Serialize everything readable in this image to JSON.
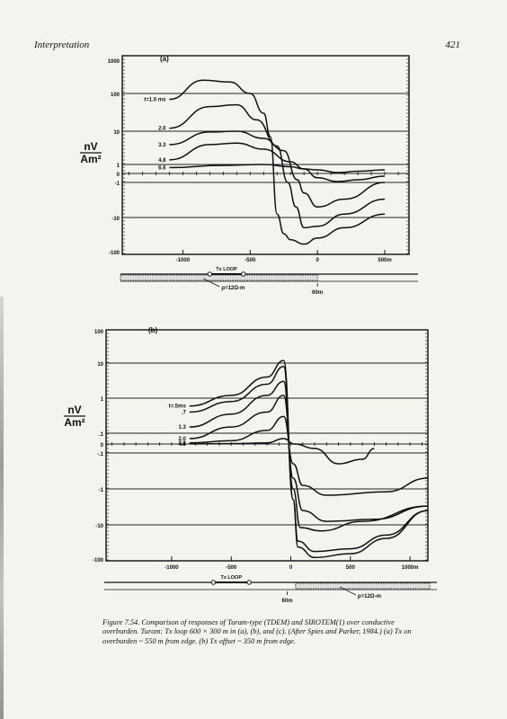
{
  "header": {
    "running_head": "Interpretation",
    "page_number": "421"
  },
  "chart_data": [
    {
      "type": "line",
      "panel_label": "(a)",
      "ylabel": [
        "nV",
        "Am²"
      ],
      "xlim": [
        -1450,
        680
      ],
      "y_ticks": [
        "1000",
        "100",
        "10",
        "1",
        "0",
        "-1",
        "-10",
        "-100"
      ],
      "x_ticks": [
        "-1000",
        "-500",
        "0",
        "500m"
      ],
      "x_tick_values": [
        -1000,
        -500,
        0,
        500
      ],
      "series": [
        {
          "name": "t=1.0 ms",
          "x": [
            -1100,
            -850,
            -650,
            -500,
            -400,
            -350,
            -300,
            -250,
            -200,
            -100,
            0,
            200,
            500
          ],
          "y": [
            70,
            250,
            220,
            100,
            30,
            5,
            -8,
            -30,
            -45,
            -60,
            -40,
            -20,
            -8
          ]
        },
        {
          "name": "2.0",
          "x": [
            -1100,
            -800,
            -600,
            -450,
            -300,
            -220,
            -160,
            -100,
            0,
            200,
            500
          ],
          "y": [
            12,
            45,
            50,
            20,
            1.5,
            -1,
            -5,
            -20,
            -18,
            -8,
            -3
          ]
        },
        {
          "name": "3.3",
          "x": [
            -1100,
            -800,
            -600,
            -400,
            -250,
            -150,
            -100,
            0,
            200,
            500
          ],
          "y": [
            1.8,
            9,
            10,
            4,
            0.8,
            -0.5,
            -2,
            -5,
            -3,
            -1
          ]
        },
        {
          "name": "4.8",
          "x": [
            -1100,
            -800,
            -600,
            -400,
            -200,
            -100,
            0,
            150,
            300,
            500
          ],
          "y": [
            0.2,
            1.8,
            2.2,
            1,
            0.15,
            0,
            -0.3,
            -0.8,
            -0.5,
            -0.2
          ]
        },
        {
          "name": "6.6",
          "x": [
            -1100,
            -700,
            -400,
            -200,
            -100,
            0,
            150,
            300,
            500
          ],
          "y": [
            0.03,
            0.08,
            0.1,
            0.05,
            0,
            -0.02,
            -0.08,
            -0.05,
            -0.02
          ]
        }
      ],
      "section": {
        "loop_label": "Tx LOOP",
        "resistivity": "ρ=12Ω-m",
        "edge_label": "60m"
      }
    },
    {
      "type": "line",
      "panel_label": "(b)",
      "ylabel": [
        "nV",
        "Am²"
      ],
      "xlim": [
        -1550,
        1150
      ],
      "y_ticks": [
        "100",
        "10",
        "1",
        ".1",
        "0",
        "-.1",
        "-1",
        "-10",
        "-100"
      ],
      "x_ticks": [
        "-1000",
        "-500",
        "0",
        "500",
        "1000m"
      ],
      "x_tick_values": [
        -1000,
        -500,
        0,
        500,
        1000
      ],
      "series": [
        {
          "name": "t=.5ms",
          "x": [
            -850,
            -500,
            -200,
            -60,
            20,
            60,
            200,
            500,
            800,
            1150
          ],
          "y": [
            0.6,
            1.2,
            4,
            12,
            -2,
            -45,
            -90,
            -70,
            -25,
            -4
          ]
        },
        {
          "name": ".7",
          "x": [
            -850,
            -500,
            -200,
            -60,
            20,
            60,
            200,
            500,
            800,
            1150
          ],
          "y": [
            0.4,
            0.8,
            2.5,
            8,
            -2,
            -30,
            -60,
            -50,
            -20,
            -4
          ]
        },
        {
          "name": "1.3",
          "x": [
            -850,
            -500,
            -200,
            -60,
            20,
            80,
            250,
            600,
            1150
          ],
          "y": [
            0.15,
            0.35,
            1.2,
            3,
            -1,
            -12,
            -15,
            -8,
            -3
          ]
        },
        {
          "name": "2.0",
          "x": [
            -850,
            -500,
            -200,
            -60,
            20,
            100,
            300,
            700,
            1150
          ],
          "y": [
            0.05,
            0.15,
            0.4,
            1.2,
            -0.5,
            -4,
            -8,
            -7,
            -3
          ]
        },
        {
          "name": "3.3",
          "x": [
            -850,
            -500,
            -200,
            -60,
            20,
            100,
            300,
            800,
            1150
          ],
          "y": [
            0.01,
            0.03,
            0.12,
            0.3,
            -0.2,
            -0.8,
            -1.5,
            -1.2,
            -0.5
          ]
        },
        {
          "name": "4.6",
          "x": [
            -850,
            -500,
            -200,
            -60,
            30,
            200,
            400,
            600,
            700
          ],
          "y": [
            0.001,
            0.003,
            0.01,
            0.05,
            0,
            -0.05,
            -0.2,
            -0.15,
            -0.05
          ]
        }
      ],
      "section": {
        "loop_label": "Tx LOOP",
        "resistivity": "ρ=12Ω-m",
        "edge_label": "60m"
      }
    }
  ],
  "caption": "Figure 7.54. Comparison of responses of Turam-type (TDEM) and SIROTEM(1) over conductive overburden. Turam: Tx loop 600 × 300 m in (a), (b), and (c). (After Spies and Parker, 1984.) (a) Tx on overburden ~ 550 m from edge. (b) Tx offset ~ 350 m from edge."
}
